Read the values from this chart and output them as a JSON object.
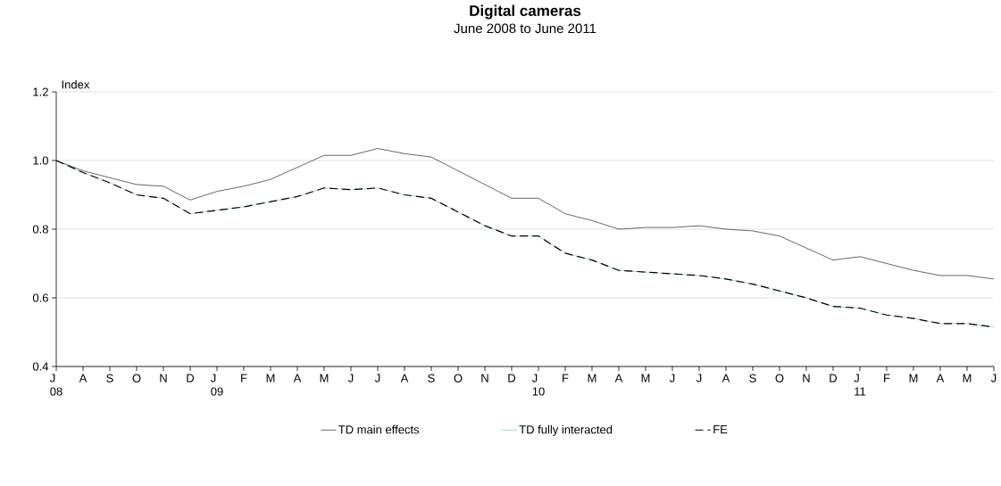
{
  "chart_data": {
    "type": "line",
    "title": "Digital cameras",
    "subtitle": "June 2008 to June 2011",
    "ylabel": "Index",
    "categories": [
      "J\n08",
      "A",
      "S",
      "O",
      "N",
      "D",
      "J\n09",
      "F",
      "M",
      "A",
      "M",
      "J",
      "J",
      "A",
      "S",
      "O",
      "N",
      "D",
      "J\n10",
      "F",
      "M",
      "A",
      "M",
      "J",
      "J",
      "A",
      "S",
      "O",
      "N",
      "D",
      "J\n11",
      "F",
      "M",
      "A",
      "M",
      "J"
    ],
    "series": [
      {
        "name": "TD main effects",
        "color": "#000000",
        "line_style": "solid",
        "values": [
          1.0,
          0.97,
          0.95,
          0.93,
          0.925,
          0.885,
          0.91,
          0.925,
          0.945,
          0.98,
          1.015,
          1.015,
          1.035,
          1.02,
          1.01,
          0.97,
          0.93,
          0.89,
          0.89,
          0.845,
          0.825,
          0.8,
          0.805,
          0.805,
          0.81,
          0.8,
          0.795,
          0.78,
          0.745,
          0.71,
          0.72,
          0.7,
          0.68,
          0.665,
          0.665,
          0.655
        ]
      },
      {
        "name": "TD fully interacted",
        "color": "#70b8b0",
        "line_style": "solid",
        "values": [
          1.0,
          0.965,
          0.935,
          0.9,
          0.89,
          0.845,
          0.855,
          0.865,
          0.88,
          0.895,
          0.92,
          0.915,
          0.92,
          0.9,
          0.89,
          0.85,
          0.81,
          0.78,
          0.78,
          0.73,
          0.71,
          0.68,
          0.675,
          0.67,
          0.665,
          0.655,
          0.64,
          0.62,
          0.6,
          0.575,
          0.57,
          0.55,
          0.54,
          0.525,
          0.525,
          0.515
        ]
      },
      {
        "name": "FE",
        "color": "#000000",
        "line_style": "dashed",
        "values": [
          1.0,
          0.965,
          0.935,
          0.9,
          0.89,
          0.845,
          0.855,
          0.865,
          0.88,
          0.895,
          0.92,
          0.915,
          0.92,
          0.9,
          0.89,
          0.85,
          0.81,
          0.78,
          0.78,
          0.73,
          0.71,
          0.68,
          0.675,
          0.67,
          0.665,
          0.655,
          0.64,
          0.62,
          0.6,
          0.575,
          0.57,
          0.55,
          0.54,
          0.525,
          0.525,
          0.515
        ]
      }
    ],
    "ylim": [
      0.4,
      1.2
    ],
    "yticks": [
      0.4,
      0.6,
      0.8,
      {
        "value": 1.0,
        "label": "1.0"
      },
      1.2
    ],
    "grid": "y",
    "legend": "bottom",
    "marker": "none"
  }
}
